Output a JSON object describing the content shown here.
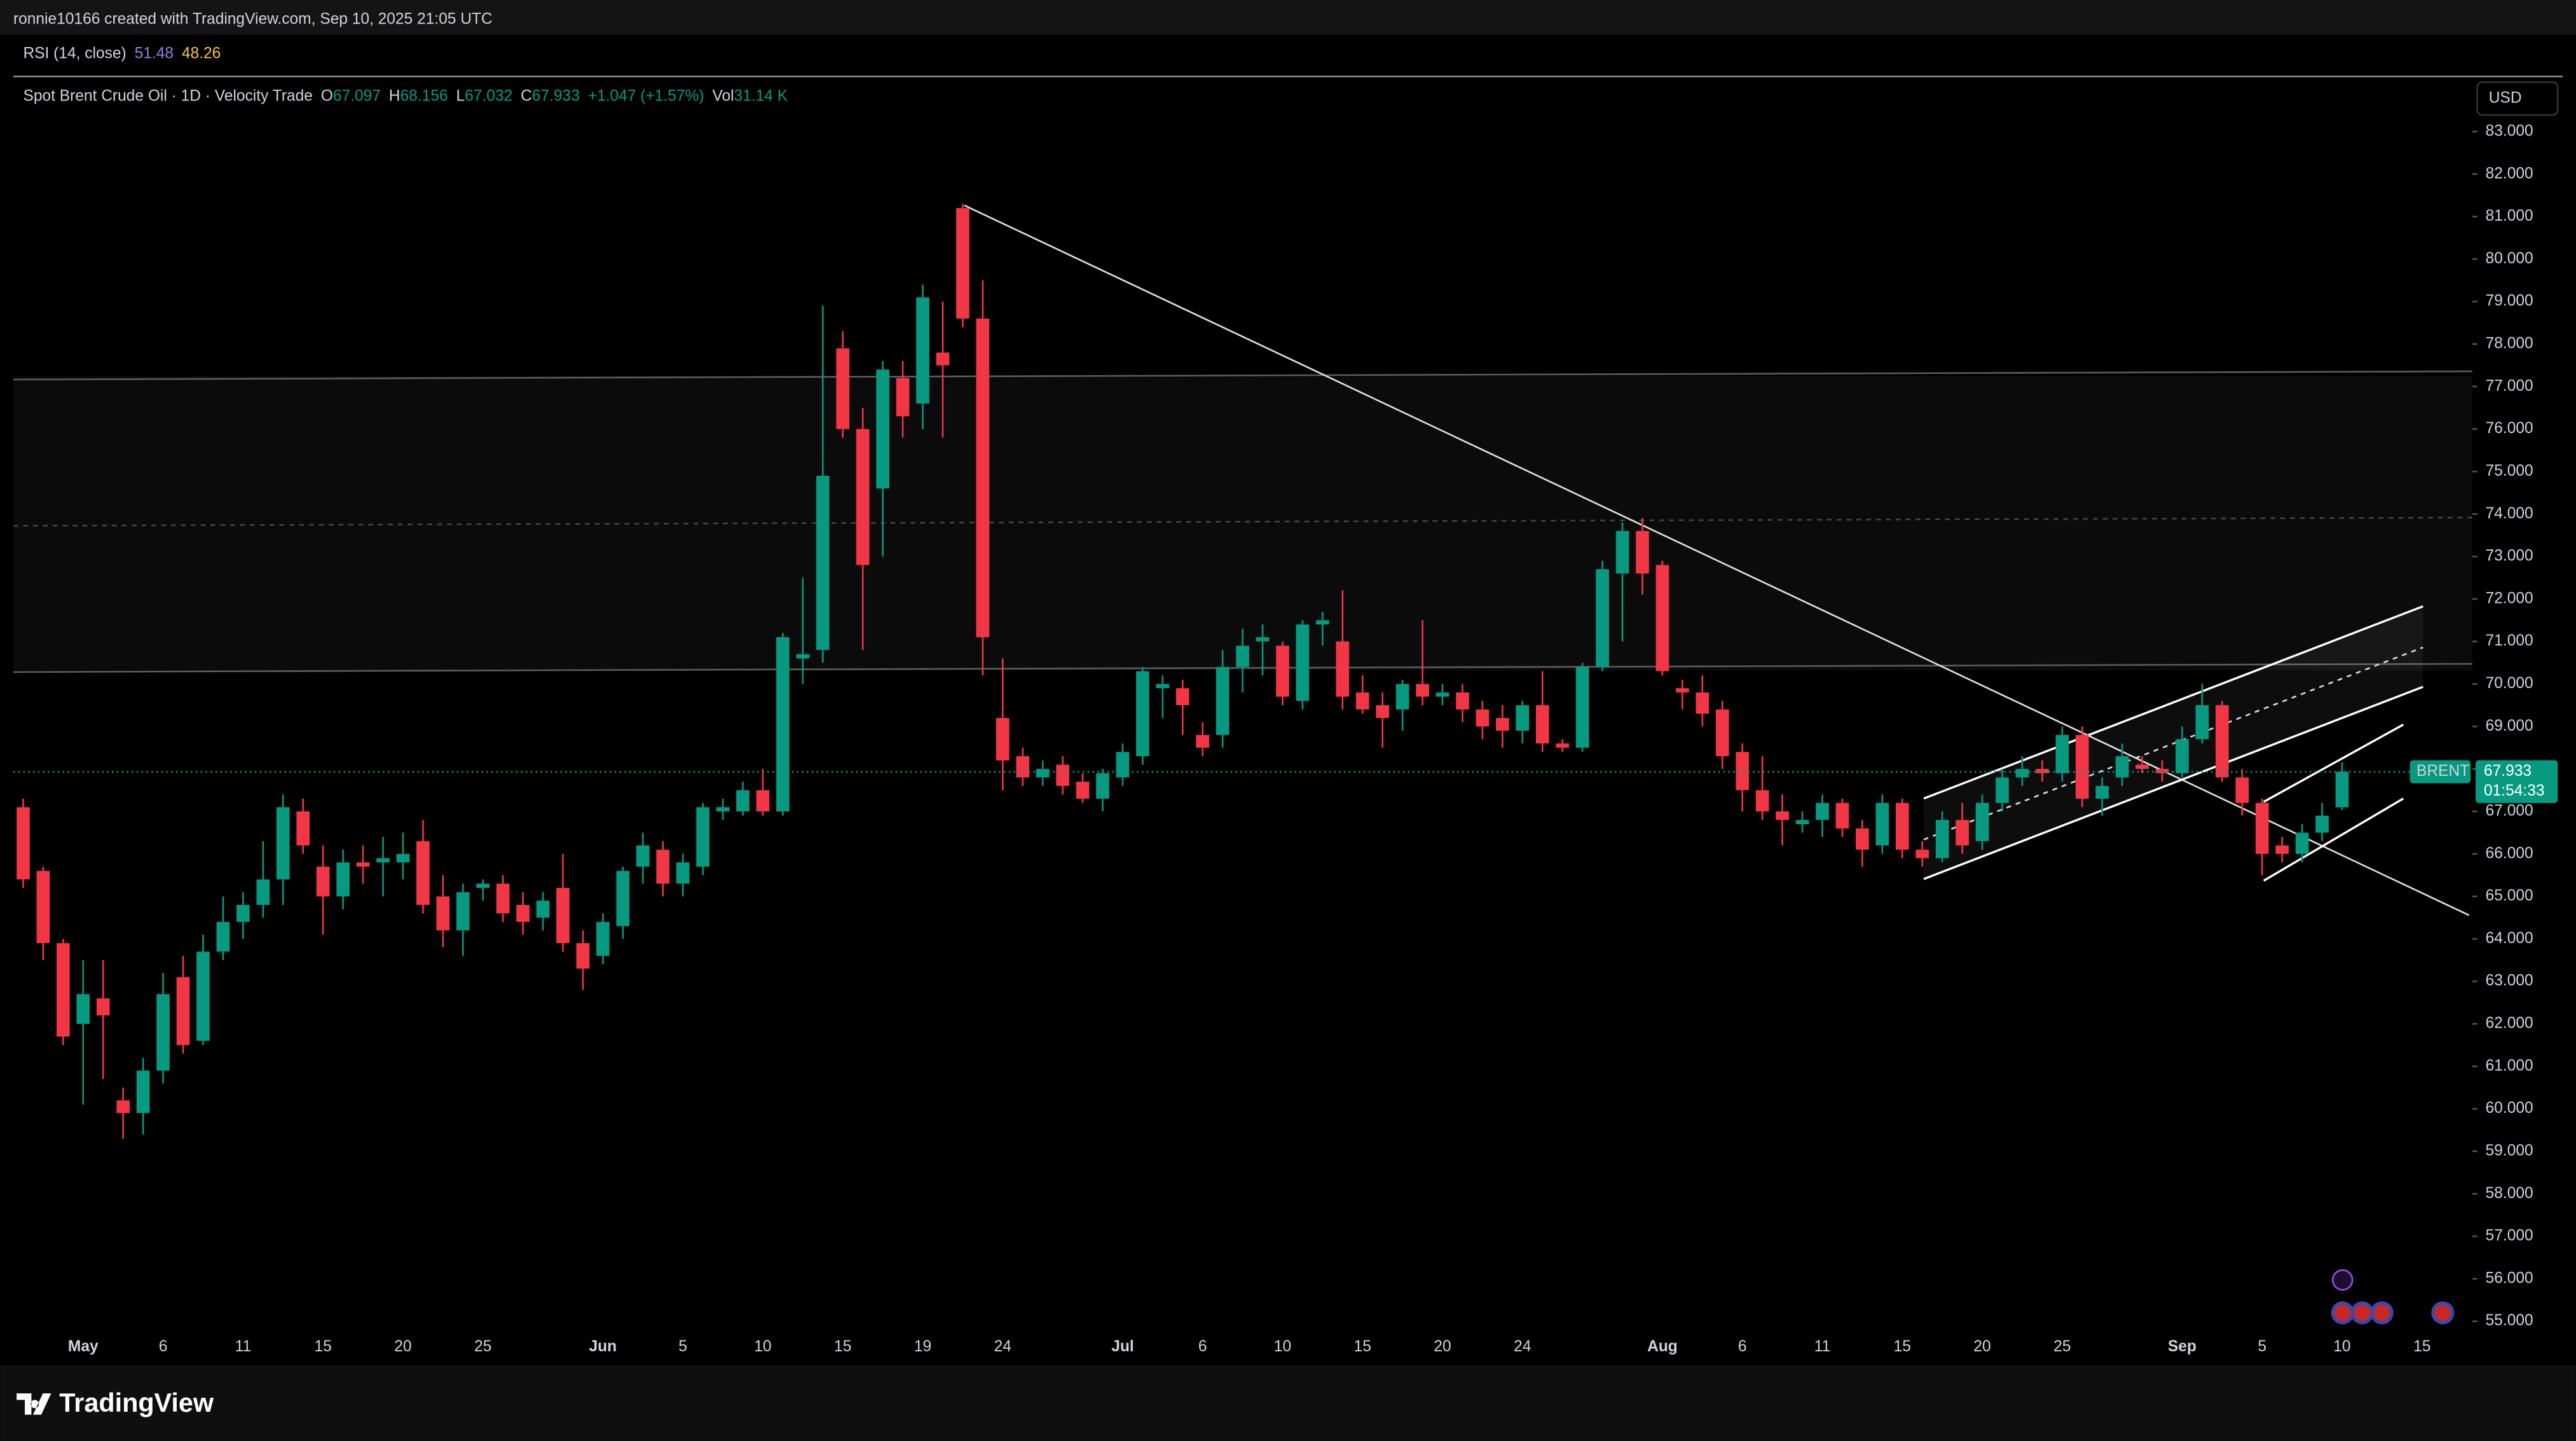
{
  "header": {
    "credit": "ronnie10166 created with TradingView.com, Sep 10, 2025 21:05 UTC"
  },
  "indicator": {
    "name": "RSI (14, close)",
    "value_1": 51.48,
    "value_2": 48.26
  },
  "legend": {
    "symbol": "Spot Brent Crude Oil · 1D · Velocity Trade",
    "open_label": "O",
    "high_label": "H",
    "low_label": "L",
    "close_label": "C",
    "change": "+1.047 (+1.57%)",
    "volume_label": "Vol",
    "volume": "31.14 K"
  },
  "currency": "USD",
  "price_tag": {
    "symbol": "BRENT",
    "countdown": "01:54:33"
  },
  "brand": "TradingView",
  "chart_data": {
    "type": "candlestick",
    "up_color": "#089981",
    "down_color": "#f23645",
    "grid": false,
    "ylim": [
      54.0,
      84.28
    ],
    "yticks": [
      {
        "value": 55,
        "label": "55.000"
      },
      {
        "value": 56,
        "label": "56.000"
      },
      {
        "value": 57,
        "label": "57.000"
      },
      {
        "value": 58,
        "label": "58.000"
      },
      {
        "value": 59,
        "label": "59.000"
      },
      {
        "value": 60,
        "label": "60.000"
      },
      {
        "value": 61,
        "label": "61.000"
      },
      {
        "value": 62,
        "label": "62.000"
      },
      {
        "value": 63,
        "label": "63.000"
      },
      {
        "value": 64,
        "label": "64.000"
      },
      {
        "value": 65,
        "label": "65.000"
      },
      {
        "value": 66,
        "label": "66.000"
      },
      {
        "value": 67,
        "label": "67.000"
      },
      {
        "value": 68,
        "label": "68.000"
      },
      {
        "value": 69,
        "label": "69.000"
      },
      {
        "value": 70,
        "label": "70.000"
      },
      {
        "value": 71,
        "label": "71.000"
      },
      {
        "value": 72,
        "label": "72.000"
      },
      {
        "value": 73,
        "label": "73.000"
      },
      {
        "value": 74,
        "label": "74.000"
      },
      {
        "value": 75,
        "label": "75.000"
      },
      {
        "value": 76,
        "label": "76.000"
      },
      {
        "value": 77,
        "label": "77.000"
      },
      {
        "value": 78,
        "label": "78.000"
      },
      {
        "value": 79,
        "label": "79.000"
      },
      {
        "value": 80,
        "label": "80.000"
      },
      {
        "value": 81,
        "label": "81.000"
      },
      {
        "value": 82,
        "label": "82.000"
      },
      {
        "value": 83,
        "label": "83.000"
      }
    ],
    "categories": [
      null,
      null,
      null,
      "May",
      null,
      null,
      null,
      "6",
      null,
      null,
      null,
      "11",
      null,
      null,
      null,
      "15",
      null,
      null,
      null,
      "20",
      null,
      null,
      null,
      "25",
      null,
      null,
      null,
      null,
      null,
      "Jun",
      null,
      null,
      null,
      "5",
      null,
      null,
      null,
      "10",
      null,
      null,
      null,
      "15",
      null,
      null,
      null,
      "19",
      null,
      null,
      null,
      "24",
      null,
      null,
      null,
      null,
      null,
      "Jul",
      null,
      null,
      null,
      "6",
      null,
      null,
      null,
      "10",
      null,
      null,
      null,
      "15",
      null,
      null,
      null,
      "20",
      null,
      null,
      null,
      "24",
      null,
      null,
      null,
      null,
      null,
      null,
      "Aug",
      null,
      null,
      null,
      "6",
      null,
      null,
      null,
      "11",
      null,
      null,
      null,
      "15",
      null,
      null,
      null,
      "20",
      null,
      null,
      null,
      "25",
      null,
      null,
      null,
      null,
      null,
      "Sep",
      null,
      null,
      null,
      "5",
      null,
      null,
      null,
      "10",
      null,
      null,
      null,
      "15",
      null,
      null
    ],
    "open": [
      67.1,
      65.6,
      63.9,
      62.0,
      62.6,
      60.2,
      59.9,
      60.9,
      63.1,
      61.6,
      63.7,
      64.4,
      64.8,
      65.4,
      67.0,
      65.7,
      65.0,
      65.8,
      65.8,
      65.8,
      66.3,
      65.0,
      64.2,
      65.2,
      65.3,
      64.8,
      64.5,
      65.2,
      63.9,
      63.6,
      64.3,
      65.7,
      66.1,
      65.3,
      65.7,
      67.0,
      67.0,
      67.5,
      67.0,
      70.6,
      70.8,
      77.9,
      76.0,
      74.6,
      77.2,
      76.6,
      77.8,
      81.2,
      78.6,
      69.2,
      68.3,
      67.8,
      68.1,
      67.7,
      67.3,
      67.8,
      68.3,
      69.9,
      69.9,
      68.8,
      68.8,
      70.4,
      71.0,
      70.9,
      69.6,
      71.4,
      71.0,
      69.8,
      69.5,
      69.4,
      70.0,
      69.7,
      69.8,
      69.4,
      69.2,
      68.9,
      69.5,
      68.6,
      68.5,
      70.4,
      72.6,
      73.6,
      72.8,
      69.9,
      69.8,
      69.4,
      68.4,
      67.5,
      67.0,
      66.7,
      66.8,
      67.2,
      66.6,
      66.2,
      67.2,
      66.1,
      65.9,
      66.8,
      66.3,
      67.2,
      67.8,
      68.0,
      67.9,
      68.8,
      67.3,
      67.8,
      68.1,
      68.0,
      67.9,
      68.7,
      69.5,
      67.8,
      67.2,
      66.2,
      66.0,
      66.5,
      67.097,
      null,
      null,
      null,
      null,
      null,
      null
    ],
    "high": [
      67.3,
      65.7,
      64.0,
      63.5,
      63.5,
      60.5,
      61.2,
      63.2,
      63.6,
      64.1,
      65.0,
      65.1,
      66.3,
      67.4,
      67.3,
      66.2,
      66.1,
      66.2,
      66.4,
      66.5,
      66.8,
      65.5,
      65.3,
      65.4,
      65.5,
      65.1,
      65.1,
      66.0,
      64.2,
      64.6,
      65.7,
      66.5,
      66.3,
      66.0,
      67.2,
      67.3,
      67.7,
      68.0,
      71.2,
      72.5,
      78.9,
      78.3,
      76.5,
      77.6,
      77.6,
      79.4,
      79.0,
      81.3,
      79.5,
      70.6,
      68.5,
      68.2,
      68.3,
      67.9,
      68.0,
      68.6,
      70.4,
      70.2,
      70.1,
      69.1,
      70.8,
      71.3,
      71.4,
      71.0,
      71.5,
      71.7,
      72.2,
      70.2,
      69.8,
      70.1,
      71.5,
      70.0,
      70.0,
      69.6,
      69.5,
      69.6,
      70.3,
      68.7,
      70.5,
      72.9,
      73.8,
      73.9,
      72.9,
      70.1,
      70.2,
      69.6,
      68.6,
      68.3,
      67.4,
      67.0,
      67.4,
      67.3,
      66.8,
      67.4,
      67.3,
      66.3,
      67.0,
      67.2,
      67.4,
      68.0,
      68.3,
      68.2,
      69.0,
      69.0,
      67.8,
      68.6,
      68.3,
      68.2,
      69.0,
      70.0,
      69.6,
      68.0,
      67.3,
      66.4,
      66.7,
      67.2,
      68.156,
      null,
      null,
      null,
      null,
      null,
      null
    ],
    "low": [
      65.2,
      63.5,
      61.5,
      60.1,
      60.7,
      59.3,
      59.4,
      60.6,
      61.3,
      61.5,
      63.5,
      64.0,
      64.5,
      64.8,
      66.0,
      64.1,
      64.7,
      65.3,
      65.0,
      65.4,
      64.6,
      63.8,
      63.6,
      64.9,
      64.4,
      64.1,
      64.2,
      63.7,
      62.8,
      63.4,
      64.0,
      65.3,
      65.0,
      65.0,
      65.5,
      66.8,
      66.9,
      66.9,
      66.9,
      70.0,
      70.5,
      75.8,
      70.8,
      73.0,
      75.8,
      76.0,
      75.8,
      78.4,
      70.2,
      67.5,
      67.6,
      67.6,
      67.4,
      67.2,
      67.0,
      67.6,
      68.1,
      69.2,
      68.8,
      68.3,
      68.5,
      69.8,
      70.2,
      69.5,
      69.4,
      70.9,
      69.4,
      69.3,
      68.5,
      68.9,
      69.5,
      69.5,
      69.1,
      68.7,
      68.5,
      68.6,
      68.4,
      68.4,
      68.4,
      70.3,
      71.0,
      72.1,
      70.2,
      69.4,
      69.0,
      68.0,
      67.0,
      66.8,
      66.2,
      66.5,
      66.4,
      66.4,
      65.7,
      66.0,
      65.9,
      65.7,
      65.8,
      66.0,
      66.1,
      67.0,
      67.6,
      67.7,
      67.7,
      67.1,
      66.9,
      67.6,
      67.9,
      67.7,
      67.8,
      68.6,
      67.7,
      66.9,
      65.5,
      65.8,
      65.8,
      66.3,
      67.032,
      null,
      null,
      null,
      null,
      null,
      null
    ],
    "close": [
      65.4,
      63.9,
      61.7,
      62.7,
      62.2,
      59.9,
      60.9,
      62.7,
      61.5,
      63.7,
      64.4,
      64.8,
      65.4,
      67.1,
      66.2,
      65.0,
      65.8,
      65.7,
      65.9,
      66.0,
      64.8,
      64.2,
      65.1,
      65.3,
      64.6,
      64.4,
      64.9,
      63.9,
      63.3,
      64.4,
      65.6,
      66.2,
      65.3,
      65.8,
      67.1,
      67.1,
      67.5,
      67.0,
      71.1,
      70.7,
      74.9,
      76.0,
      72.8,
      77.4,
      76.3,
      79.1,
      77.5,
      78.6,
      71.1,
      68.2,
      67.8,
      68.0,
      67.6,
      67.3,
      67.9,
      68.4,
      70.3,
      70.0,
      69.5,
      68.5,
      70.4,
      70.9,
      71.1,
      69.7,
      71.4,
      71.5,
      69.7,
      69.4,
      69.2,
      70.0,
      69.7,
      69.8,
      69.4,
      69.0,
      68.9,
      69.5,
      68.6,
      68.5,
      70.4,
      72.7,
      73.6,
      72.6,
      70.3,
      69.8,
      69.3,
      68.3,
      67.5,
      67.0,
      66.8,
      66.8,
      67.2,
      66.6,
      66.1,
      67.2,
      66.1,
      65.9,
      66.8,
      66.2,
      67.2,
      67.8,
      68.0,
      67.9,
      68.8,
      67.3,
      67.6,
      68.3,
      68.0,
      67.9,
      68.7,
      69.5,
      67.8,
      67.2,
      66.0,
      66.0,
      66.5,
      66.9,
      67.933,
      null,
      null,
      null,
      null,
      null,
      null
    ]
  }
}
